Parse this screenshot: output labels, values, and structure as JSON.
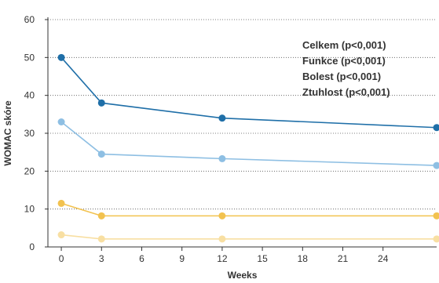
{
  "chart_data": {
    "type": "line",
    "xlabel": "Weeks",
    "ylabel": "WOMAC skóre",
    "xlim": [
      -1,
      28
    ],
    "ylim": [
      0,
      60
    ],
    "x_ticks": [
      0,
      3,
      6,
      9,
      12,
      15,
      18,
      21,
      24
    ],
    "y_ticks": [
      0,
      10,
      20,
      30,
      40,
      50,
      60
    ],
    "grid": "horizontal dotted",
    "legend_placement": "top-right",
    "legend": [
      "Celkem (p<0,001)",
      "Funkce (p<0,001)",
      "Bolest (p<0,001)",
      "Ztuhlost (p<0,001)"
    ],
    "series": [
      {
        "x": [
          0,
          3,
          12,
          28
        ],
        "values": [
          50,
          38,
          34,
          31.5
        ],
        "color": "#1f6fa8"
      },
      {
        "x": [
          0,
          3,
          12,
          28
        ],
        "values": [
          33,
          24.5,
          23.3,
          21.5
        ],
        "color": "#8ebfe3"
      },
      {
        "x": [
          0,
          3,
          12,
          28
        ],
        "values": [
          11.5,
          8.2,
          8.2,
          8.2
        ],
        "color": "#f2c24f"
      },
      {
        "x": [
          0,
          3,
          12,
          28
        ],
        "values": [
          3.2,
          2.1,
          2.1,
          2.1
        ],
        "color": "#f8dfa2"
      }
    ]
  }
}
